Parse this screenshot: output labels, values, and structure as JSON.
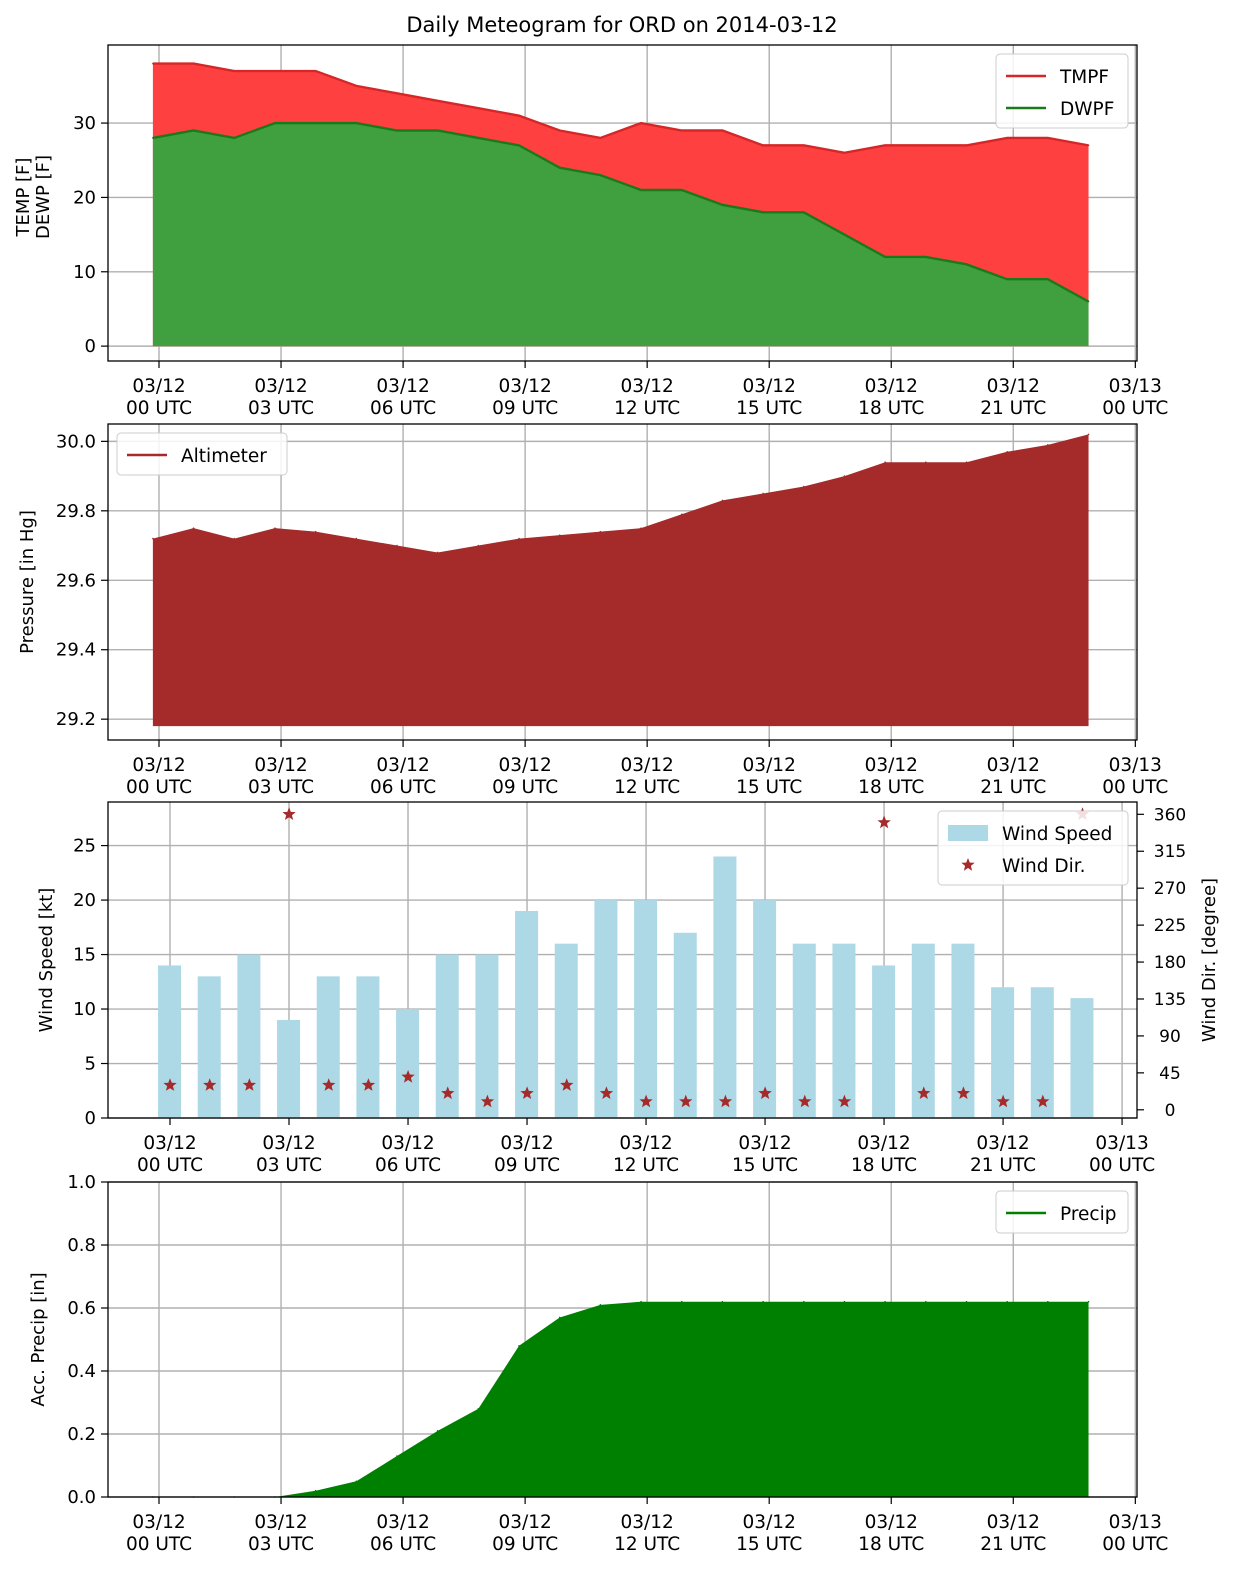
{
  "title": "Daily Meteogram for ORD on 2014-03-12",
  "x_ticks": [
    {
      "line1": "03/12",
      "line2": "00 UTC",
      "hour": 0
    },
    {
      "line1": "03/12",
      "line2": "03 UTC",
      "hour": 3
    },
    {
      "line1": "03/12",
      "line2": "06 UTC",
      "hour": 6
    },
    {
      "line1": "03/12",
      "line2": "09 UTC",
      "hour": 9
    },
    {
      "line1": "03/12",
      "line2": "12 UTC",
      "hour": 12
    },
    {
      "line1": "03/12",
      "line2": "15 UTC",
      "hour": 15
    },
    {
      "line1": "03/12",
      "line2": "18 UTC",
      "hour": 18
    },
    {
      "line1": "03/12",
      "line2": "21 UTC",
      "hour": 21
    },
    {
      "line1": "03/13",
      "line2": "00 UTC",
      "hour": 24
    }
  ],
  "chart_data": [
    {
      "type": "area",
      "panel": "temperature",
      "ylabel_lines": [
        "TEMP [F]",
        "DEWP [F]"
      ],
      "ylim": [
        -2,
        40.5
      ],
      "yticks": [
        0,
        10,
        20,
        30
      ],
      "grid": true,
      "legend_position": "top-right",
      "x_hours": [
        -0.15,
        0.85,
        1.85,
        2.85,
        3.85,
        4.85,
        5.85,
        6.85,
        7.85,
        8.85,
        9.85,
        10.85,
        11.85,
        12.85,
        13.85,
        14.85,
        15.85,
        16.85,
        17.85,
        18.85,
        19.85,
        20.85,
        21.85,
        22.85
      ],
      "series": [
        {
          "name": "TMPF",
          "color": "#ff4040",
          "line_color": "#d62728",
          "values": [
            38,
            38,
            37,
            37,
            37,
            35,
            34,
            33,
            32,
            31,
            29,
            28,
            30,
            29,
            29,
            27,
            27,
            26,
            27,
            27,
            27,
            28,
            28,
            27
          ]
        },
        {
          "name": "DWPF",
          "color": "#40a040",
          "line_color": "#1a7a1a",
          "values": [
            28,
            29,
            28,
            30,
            30,
            30,
            29,
            29,
            28,
            27,
            24,
            23,
            21,
            21,
            19,
            18,
            18,
            15,
            12,
            12,
            11,
            9,
            9,
            6
          ]
        }
      ]
    },
    {
      "type": "area",
      "panel": "pressure",
      "ylabel": "Pressure [in Hg]",
      "ylim": [
        29.14,
        30.05
      ],
      "yticks": [
        29.2,
        29.4,
        29.6,
        29.8,
        30.0
      ],
      "grid": true,
      "legend_position": "top-left",
      "x_hours": [
        -0.15,
        0.85,
        1.85,
        2.85,
        3.85,
        4.85,
        5.85,
        6.85,
        7.85,
        8.85,
        9.85,
        10.85,
        11.85,
        12.85,
        13.85,
        14.85,
        15.85,
        16.85,
        17.85,
        18.85,
        19.85,
        20.85,
        21.85,
        22.85
      ],
      "series": [
        {
          "name": "Altimeter",
          "color": "#a52a2a",
          "values": [
            29.72,
            29.75,
            29.72,
            29.75,
            29.74,
            29.72,
            29.7,
            29.68,
            29.7,
            29.72,
            29.73,
            29.74,
            29.75,
            29.79,
            29.83,
            29.85,
            29.87,
            29.9,
            29.94,
            29.94,
            29.94,
            29.97,
            29.99,
            30.02
          ]
        }
      ]
    },
    {
      "type": "bar",
      "panel": "wind",
      "ylabel": "Wind Speed [kt]",
      "y2label": "Wind Dir. [degree]",
      "ylim": [
        0,
        29
      ],
      "y2lim": [
        -10,
        375
      ],
      "yticks": [
        0,
        5,
        10,
        15,
        20,
        25
      ],
      "y2ticks": [
        0,
        45,
        90,
        135,
        180,
        225,
        270,
        315,
        360
      ],
      "grid": true,
      "legend_position": "top-right",
      "x_hours": [
        -0.15,
        0.85,
        1.85,
        2.85,
        3.85,
        4.85,
        5.85,
        6.85,
        7.85,
        8.85,
        9.85,
        10.85,
        11.85,
        12.85,
        13.85,
        14.85,
        15.85,
        16.85,
        17.85,
        18.85,
        19.85,
        20.85,
        21.85,
        22.85
      ],
      "series": [
        {
          "name": "Wind Speed",
          "color": "#add8e6",
          "values": [
            14,
            13,
            15,
            9,
            13,
            13,
            10,
            15,
            15,
            19,
            16,
            20,
            20,
            17,
            24,
            20,
            16,
            16,
            14,
            16,
            16,
            12,
            12,
            11
          ]
        },
        {
          "name": "Wind Dir.",
          "color": "#a52a2a",
          "marker": "star",
          "axis": "right",
          "values": [
            30,
            30,
            30,
            360,
            30,
            30,
            40,
            20,
            10,
            20,
            30,
            20,
            10,
            10,
            10,
            20,
            10,
            10,
            350,
            20,
            20,
            10,
            10,
            360
          ]
        }
      ]
    },
    {
      "type": "area",
      "panel": "precip",
      "ylabel": "Acc. Precip [in]",
      "ylim": [
        0,
        1.0
      ],
      "yticks": [
        0.0,
        0.2,
        0.4,
        0.6,
        0.8,
        1.0
      ],
      "grid": true,
      "legend_position": "top-right",
      "x_hours": [
        -0.15,
        0.85,
        1.85,
        2.85,
        3.85,
        4.85,
        5.85,
        6.85,
        7.85,
        8.85,
        9.85,
        10.85,
        11.85,
        12.85,
        13.85,
        14.85,
        15.85,
        16.85,
        17.85,
        18.85,
        19.85,
        20.85,
        21.85,
        22.85
      ],
      "series": [
        {
          "name": "Precip",
          "color": "#008000",
          "values": [
            0.0,
            0.0,
            0.0,
            0.0,
            0.02,
            0.05,
            0.13,
            0.21,
            0.28,
            0.48,
            0.57,
            0.61,
            0.62,
            0.62,
            0.62,
            0.62,
            0.62,
            0.62,
            0.62,
            0.62,
            0.62,
            0.62,
            0.62,
            0.62
          ]
        }
      ]
    }
  ]
}
